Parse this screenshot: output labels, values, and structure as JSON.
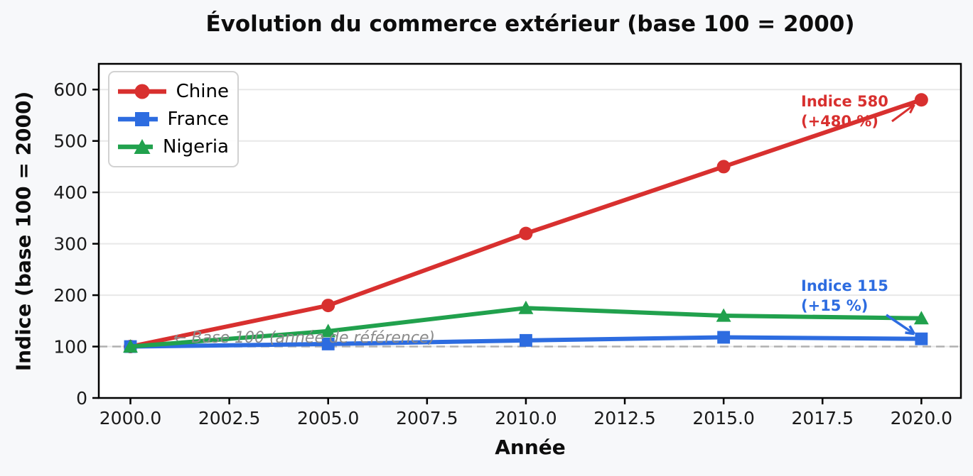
{
  "chart_data": {
    "type": "line",
    "title": "Évolution du commerce extérieur (base 100 = 2000)",
    "xlabel": "Année",
    "ylabel": "Indice (base 100 = 2000)",
    "x": [
      2000,
      2005,
      2010,
      2015,
      2020
    ],
    "series": [
      {
        "name": "Chine",
        "color": "#d8302f",
        "marker": "circle",
        "values": [
          100,
          180,
          320,
          450,
          580
        ]
      },
      {
        "name": "France",
        "color": "#2d6ce0",
        "marker": "square",
        "values": [
          100,
          105,
          112,
          118,
          115
        ]
      },
      {
        "name": "Nigeria",
        "color": "#21a14d",
        "marker": "triangle",
        "values": [
          100,
          130,
          175,
          160,
          155
        ]
      }
    ],
    "xlim": [
      1999.2,
      2021.0
    ],
    "ylim": [
      0,
      650
    ],
    "x_tick_values": [
      2000,
      2002.5,
      2005,
      2007.5,
      2010,
      2012.5,
      2015,
      2017.5,
      2020
    ],
    "x_ticks": [
      "2000.0",
      "2002.5",
      "2005.0",
      "2007.5",
      "2010.0",
      "2012.5",
      "2015.0",
      "2017.5",
      "2020.0"
    ],
    "y_tick_values": [
      0,
      100,
      200,
      300,
      400,
      500,
      600
    ],
    "y_ticks": [
      "0",
      "100",
      "200",
      "300",
      "400",
      "500",
      "600"
    ],
    "grid": "horizontal",
    "legend_position": "upper-left",
    "colors": {
      "figure_bg": "#f7f8fa",
      "axes_bg": "#ffffff",
      "grid": "#e8e8e8",
      "spine": "#000000",
      "tick_label": "#1a1a1a"
    },
    "reference_line": {
      "y": 100,
      "style": "dashed",
      "color": "#b0b0b0",
      "label": "← Base 100 (année de référence)",
      "label_color": "#8a8a8a"
    },
    "annotations": [
      {
        "id": "chine",
        "text_lines": [
          "Indice 580",
          "(+480 %)"
        ],
        "color": "#d8302f",
        "target_x": 2020,
        "target_y": 580
      },
      {
        "id": "france",
        "text_lines": [
          "Indice 115",
          "(+15 %)"
        ],
        "color": "#2d6ce0",
        "target_x": 2020,
        "target_y": 115
      }
    ]
  }
}
